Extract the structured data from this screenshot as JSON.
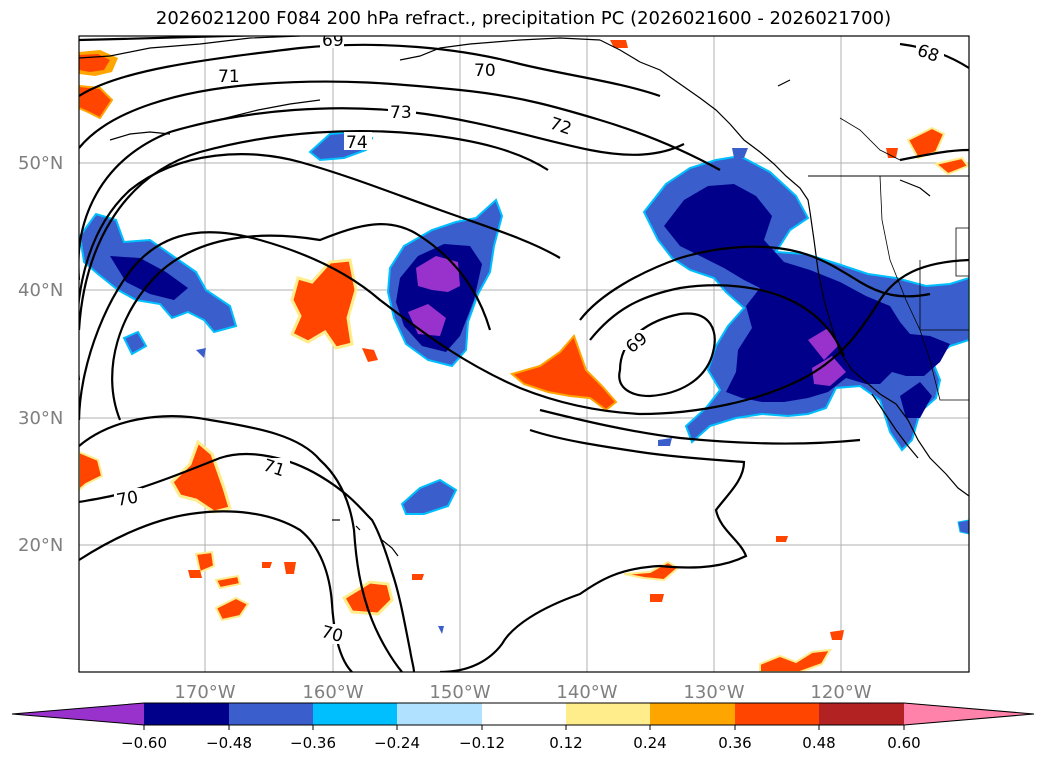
{
  "title": "2026021200 F084 200 hPa refract., precipitation PC (2026021600 - 2026021700)",
  "map": {
    "lat_labels": [
      "50°N",
      "40°N",
      "30°N",
      "20°N"
    ],
    "lon_labels": [
      "170°W",
      "160°W",
      "150°W",
      "140°W",
      "130°W",
      "120°W"
    ],
    "contour_labels": [
      "69",
      "71",
      "70",
      "73",
      "72",
      "74",
      "69",
      "71",
      "70",
      "70",
      "68"
    ]
  },
  "colorbar": {
    "colors": [
      "#9932cc",
      "#00008b",
      "#3a5fcd",
      "#00bfff",
      "#b0e2ff",
      "#ffffff",
      "#ffec8b",
      "#ffa500",
      "#ff4500",
      "#b22222",
      "#ff82ab"
    ],
    "tick_labels": [
      "−0.60",
      "−0.48",
      "−0.36",
      "−0.24",
      "−0.12",
      "0.12",
      "0.24",
      "0.36",
      "0.48",
      "0.60"
    ]
  }
}
